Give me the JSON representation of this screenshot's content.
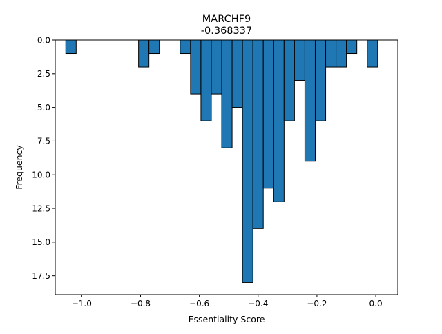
{
  "chart_data": {
    "type": "bar",
    "title": "MARCHF9",
    "subtitle": "-0.368337",
    "xlabel": "Essentiality Score",
    "ylabel": "Frequency",
    "xlim": [
      -1.09,
      0.075
    ],
    "ylim": [
      0,
      18.9
    ],
    "y_inverted": true,
    "grid": false,
    "bin_width": 0.03535,
    "bar_color": "#1f77b4",
    "edge_color": "#000000",
    "x_ticks": [
      -1.0,
      -0.8,
      -0.6,
      -0.4,
      -0.2,
      0.0
    ],
    "x_tick_labels": [
      "−1.0",
      "−0.8",
      "−0.6",
      "−0.4",
      "−0.2",
      "0.0"
    ],
    "y_ticks": [
      0.0,
      2.5,
      5.0,
      7.5,
      10.0,
      12.5,
      15.0,
      17.5
    ],
    "y_tick_labels": [
      "0.0",
      "2.5",
      "5.0",
      "7.5",
      "10.0",
      "12.5",
      "15.0",
      "17.5"
    ],
    "bins": [
      {
        "x": -1.0365,
        "count": 1
      },
      {
        "x": -0.789,
        "count": 2
      },
      {
        "x": -0.7537,
        "count": 1
      },
      {
        "x": -0.6476,
        "count": 1
      },
      {
        "x": -0.6123,
        "count": 4
      },
      {
        "x": -0.5769,
        "count": 6
      },
      {
        "x": -0.5416,
        "count": 4
      },
      {
        "x": -0.5062,
        "count": 8
      },
      {
        "x": -0.4709,
        "count": 5
      },
      {
        "x": -0.4355,
        "count": 18
      },
      {
        "x": -0.4002,
        "count": 14
      },
      {
        "x": -0.3648,
        "count": 11
      },
      {
        "x": -0.3294,
        "count": 12
      },
      {
        "x": -0.2941,
        "count": 6
      },
      {
        "x": -0.2587,
        "count": 3
      },
      {
        "x": -0.2234,
        "count": 9
      },
      {
        "x": -0.188,
        "count": 6
      },
      {
        "x": -0.1527,
        "count": 2
      },
      {
        "x": -0.1173,
        "count": 2
      },
      {
        "x": -0.082,
        "count": 1
      },
      {
        "x": -0.0113,
        "count": 2
      }
    ]
  }
}
